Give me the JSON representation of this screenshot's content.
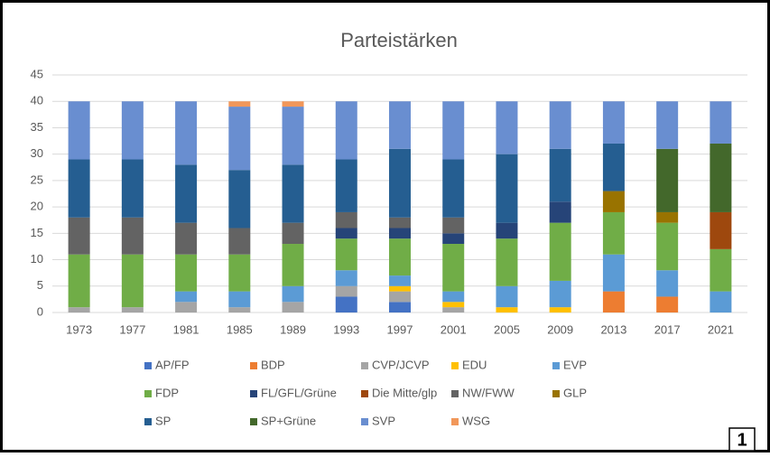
{
  "chart_data": {
    "type": "stacked_bar",
    "title": "Parteistärken",
    "categories": [
      "1973",
      "1977",
      "1981",
      "1985",
      "1989",
      "1993",
      "1997",
      "2001",
      "2005",
      "2009",
      "2013",
      "2017",
      "2021"
    ],
    "ylim": [
      0,
      45
    ],
    "yticks": [
      0,
      5,
      10,
      15,
      20,
      25,
      30,
      35,
      40,
      45
    ],
    "grid": true,
    "series": [
      {
        "name": "AP/FP",
        "color": "#4472c4",
        "values": [
          0,
          0,
          0,
          0,
          0,
          3,
          2,
          0,
          0,
          0,
          0,
          0,
          0
        ]
      },
      {
        "name": "BDP",
        "color": "#ed7d31",
        "values": [
          0,
          0,
          0,
          0,
          0,
          0,
          0,
          0,
          0,
          0,
          4,
          3,
          0
        ]
      },
      {
        "name": "CVP/JCVP",
        "color": "#a5a5a5",
        "values": [
          1,
          1,
          2,
          1,
          2,
          2,
          2,
          1,
          0,
          0,
          0,
          0,
          0
        ]
      },
      {
        "name": "EDU",
        "color": "#ffc000",
        "values": [
          0,
          0,
          0,
          0,
          0,
          0,
          1,
          1,
          1,
          1,
          0,
          0,
          0
        ]
      },
      {
        "name": "EVP",
        "color": "#5b9bd5",
        "values": [
          0,
          0,
          2,
          3,
          3,
          3,
          2,
          2,
          4,
          5,
          7,
          5,
          4
        ]
      },
      {
        "name": "FDP",
        "color": "#70ad47",
        "values": [
          10,
          10,
          7,
          7,
          8,
          6,
          7,
          9,
          9,
          11,
          8,
          9,
          8
        ]
      },
      {
        "name": "FL/GFL/Grüne",
        "color": "#264478",
        "values": [
          0,
          0,
          0,
          0,
          0,
          2,
          2,
          2,
          3,
          4,
          0,
          0,
          0
        ]
      },
      {
        "name": "Die Mitte/glp",
        "color": "#9e480e",
        "values": [
          0,
          0,
          0,
          0,
          0,
          0,
          0,
          0,
          0,
          0,
          0,
          0,
          7
        ]
      },
      {
        "name": "NW/FWW",
        "color": "#636363",
        "values": [
          7,
          7,
          6,
          5,
          4,
          3,
          2,
          3,
          0,
          0,
          0,
          0,
          0
        ]
      },
      {
        "name": "GLP",
        "color": "#997300",
        "values": [
          0,
          0,
          0,
          0,
          0,
          0,
          0,
          0,
          0,
          0,
          4,
          2,
          0
        ]
      },
      {
        "name": "SP",
        "color": "#255e91",
        "values": [
          11,
          11,
          11,
          11,
          11,
          10,
          13,
          11,
          13,
          10,
          9,
          0,
          0
        ]
      },
      {
        "name": "SP+Grüne",
        "color": "#43682b",
        "values": [
          0,
          0,
          0,
          0,
          0,
          0,
          0,
          0,
          0,
          0,
          0,
          12,
          13
        ]
      },
      {
        "name": "SVP",
        "color": "#698ed0",
        "values": [
          11,
          11,
          12,
          12,
          11,
          11,
          9,
          11,
          10,
          9,
          8,
          9,
          8
        ]
      },
      {
        "name": "WSG",
        "color": "#f1975a",
        "values": [
          0,
          0,
          0,
          1,
          1,
          0,
          0,
          0,
          0,
          0,
          0,
          0,
          0
        ]
      }
    ]
  },
  "badge": "1"
}
